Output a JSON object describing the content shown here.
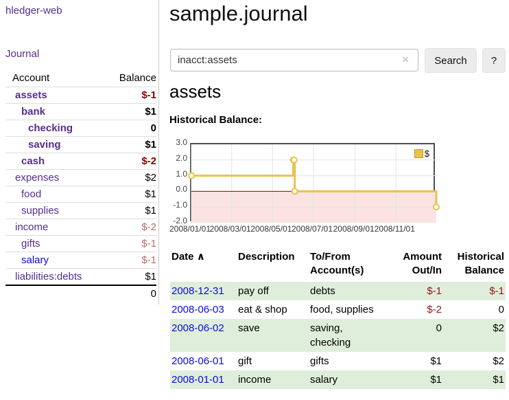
{
  "app": {
    "title": "hledger-web"
  },
  "sidebar": {
    "nav": [
      {
        "label": "Journal"
      }
    ],
    "table": {
      "headers": [
        "Account",
        "Balance"
      ],
      "accounts": [
        {
          "name": "assets",
          "balance": "$-1",
          "indent": 1,
          "bold": true,
          "balance_style": "neg-bold"
        },
        {
          "name": "bank",
          "balance": "$1",
          "indent": 2,
          "bold": true,
          "balance_style": "pos"
        },
        {
          "name": "checking",
          "balance": "0",
          "indent": 3,
          "bold": true,
          "balance_style": "pos"
        },
        {
          "name": "saving",
          "balance": "$1",
          "indent": 3,
          "bold": true,
          "balance_style": "pos"
        },
        {
          "name": "cash",
          "balance": "$-2",
          "indent": 2,
          "bold": true,
          "balance_style": "neg-bold"
        },
        {
          "name": "expenses",
          "balance": "$2",
          "indent": 1,
          "bold": false,
          "balance_style": "pos"
        },
        {
          "name": "food",
          "balance": "$1",
          "indent": 2,
          "bold": false,
          "balance_style": "pos"
        },
        {
          "name": "supplies",
          "balance": "$1",
          "indent": 2,
          "bold": false,
          "balance_style": "pos"
        },
        {
          "name": "income",
          "balance": "$-2",
          "indent": 1,
          "bold": false,
          "balance_style": "neg"
        },
        {
          "name": "gifts",
          "balance": "$-1",
          "indent": 2,
          "bold": false,
          "balance_style": "neg"
        },
        {
          "name": "salary",
          "balance": "$-1",
          "indent": 2,
          "bold": false,
          "balance_style": "neg",
          "link_style": "unvisited"
        },
        {
          "name": "liabilities:debts",
          "balance": "$1",
          "indent": 1,
          "bold": false,
          "balance_style": "pos"
        }
      ],
      "total": "0"
    }
  },
  "header": {
    "title": "sample.journal"
  },
  "search": {
    "value": "inacct:assets",
    "clear_icon": "×",
    "button_label": "Search",
    "help_label": "?"
  },
  "account_page": {
    "title": "assets",
    "chart_label": "Historical Balance:"
  },
  "chart_data": {
    "type": "line",
    "step": true,
    "title": "Historical Balance:",
    "series": [
      {
        "name": "$",
        "color": "#E9C24A",
        "points": [
          [
            "2008-01-01",
            1
          ],
          [
            "2008-06-01",
            2
          ],
          [
            "2008-06-02",
            2
          ],
          [
            "2008-06-03",
            0
          ],
          [
            "2008-12-31",
            -1
          ]
        ]
      }
    ],
    "x_range": [
      "2008-01-01",
      "2008-12-31"
    ],
    "ylim": [
      -2,
      3
    ],
    "y_ticks": [
      {
        "v": 3,
        "label": "3.0"
      },
      {
        "v": 2,
        "label": "2.0"
      },
      {
        "v": 1,
        "label": "1.0"
      },
      {
        "v": 0,
        "label": "0.0"
      },
      {
        "v": -1,
        "label": "-1.0"
      },
      {
        "v": -2,
        "label": "-2.0"
      }
    ],
    "x_ticks": [
      {
        "date": "2008-01-01",
        "label": "2008/01/01"
      },
      {
        "date": "2008-03-01",
        "label": "2008/03/01"
      },
      {
        "date": "2008-05-01",
        "label": "2008/05/01"
      },
      {
        "date": "2008-07-01",
        "label": "2008/07/01"
      },
      {
        "date": "2008-09-01",
        "label": "2008/09/01"
      },
      {
        "date": "2008-11-01",
        "label": "2008/11/01"
      }
    ],
    "legend": {
      "label": "$",
      "position": "top-right"
    },
    "grid": true,
    "zero_line_color": "#8b0000",
    "negative_region_color": "#fbe3e3"
  },
  "register": {
    "headers": {
      "date": "Date",
      "sort_arrow": "∧",
      "description": "Description",
      "accounts": "To/From Account(s)",
      "amount": "Amount Out/In",
      "balance": "Historical Balance"
    },
    "rows": [
      {
        "date": "2008-12-31",
        "description": "pay off",
        "accounts": "debts",
        "amount": "$-1",
        "amount_style": "neg",
        "balance": "$-1",
        "balance_style": "neg"
      },
      {
        "date": "2008-06-03",
        "description": "eat & shop",
        "accounts": "food, supplies",
        "amount": "$-2",
        "amount_style": "neg",
        "balance": "0",
        "balance_style": "pos"
      },
      {
        "date": "2008-06-02",
        "description": "save",
        "accounts": "saving, checking",
        "amount": "0",
        "amount_style": "pos",
        "balance": "$2",
        "balance_style": "pos"
      },
      {
        "date": "2008-06-01",
        "description": "gift",
        "accounts": "gifts",
        "amount": "$1",
        "amount_style": "pos",
        "balance": "$2",
        "balance_style": "pos"
      },
      {
        "date": "2008-01-01",
        "description": "income",
        "accounts": "salary",
        "amount": "$1",
        "amount_style": "pos",
        "balance": "$1",
        "balance_style": "pos"
      }
    ]
  },
  "colors": {
    "link_purple": "#552d90",
    "link_blue": "#0b0bdf",
    "negative_bold": "#8b0000",
    "negative_light": "#b4706c",
    "negative_table": "#941414",
    "row_stripe_green": "#dfeeda",
    "chart_line_gold": "#E9C24A",
    "chart_negative_bg": "#fbe3e3",
    "zero_line_red": "#8b0000",
    "chart_border": "#4d4d4d"
  }
}
